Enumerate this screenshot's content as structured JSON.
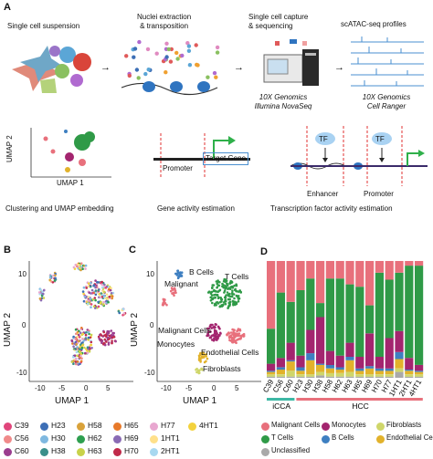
{
  "panel_letters": {
    "a": "A",
    "b": "B",
    "c": "C",
    "d": "D"
  },
  "workflow": {
    "step1": "Single cell suspension",
    "step2": "Nuclei extraction\n& transposition",
    "step3": "Single cell capture\n& sequencing",
    "step4": "scATAC-seq profiles",
    "platform1": "10X Genomics\nIllumina NovaSeq",
    "platform2": "10X Genomics\nCell Ranger"
  },
  "analyses": {
    "umap_x": "UMAP 1",
    "umap_y": "UMAP 2",
    "clustering": "Clustering and UMAP embedding",
    "promoter": "Promoter",
    "target_gene": "Target Gene",
    "gene_activity": "Gene activity estimation",
    "tf": "TF",
    "enhancer": "Enhancer",
    "tf_activity": "Transcription factor activity estimation"
  },
  "panel_b": {
    "xlabel": "UMAP 1",
    "ylabel": "UMAP 2",
    "xticks": [
      "-10",
      "-5",
      "0",
      "5"
    ],
    "yticks": [
      "10",
      "0",
      "-10"
    ]
  },
  "panel_c": {
    "xlabel": "UMAP 1",
    "ylabel": "UMAP 2",
    "xticks": [
      "-10",
      "-5",
      "0",
      "5"
    ],
    "yticks": [
      "10",
      "0",
      "-10"
    ],
    "cluster_labels": [
      "B Cells",
      "T Cells",
      "Malignant",
      "Malignant Cells",
      "Monocytes",
      "Endothelial Cells",
      "Fibroblasts"
    ]
  },
  "panel_d": {
    "group1": "iCCA",
    "group2": "HCC",
    "group1_color": "#3db8a5",
    "group2_color": "#e8707c"
  },
  "sample_legend": [
    {
      "label": "C39",
      "color": "#e0457b"
    },
    {
      "label": "H23",
      "color": "#3d6fb6"
    },
    {
      "label": "H58",
      "color": "#d9a23a"
    },
    {
      "label": "H65",
      "color": "#e87a2a"
    },
    {
      "label": "H77",
      "color": "#e8a7d0"
    },
    {
      "label": "4HT1",
      "color": "#f3d23d"
    },
    {
      "label": "C56",
      "color": "#f08a8a"
    },
    {
      "label": "H30",
      "color": "#7fb8e0"
    },
    {
      "label": "H62",
      "color": "#2e9f4f"
    },
    {
      "label": "H69",
      "color": "#8a6bb5"
    },
    {
      "label": "1HT1",
      "color": "#ffe08a"
    },
    {
      "label": "C60",
      "color": "#9b3d8f"
    },
    {
      "label": "H38",
      "color": "#3a8f8a"
    },
    {
      "label": "H63",
      "color": "#c8d24a"
    },
    {
      "label": "H70",
      "color": "#c02a4a"
    },
    {
      "label": "2HT1",
      "color": "#a8d8f0"
    }
  ],
  "celltype_legend": [
    {
      "label": "Malignant Cells",
      "color": "#e8707c"
    },
    {
      "label": "Monocytes",
      "color": "#a3256f"
    },
    {
      "label": "Fibroblasts",
      "color": "#cfd66a"
    },
    {
      "label": "T Cells",
      "color": "#2f9a47"
    },
    {
      "label": "B Cells",
      "color": "#3e7fc1"
    },
    {
      "label": "Endothelial Cells",
      "color": "#e2b22b"
    },
    {
      "label": "Unclassified",
      "color": "#a9a9a9"
    }
  ],
  "chart_data": {
    "type": "bar",
    "stacked": true,
    "categories": [
      "C39",
      "C56",
      "C60",
      "H23",
      "H30",
      "H38",
      "H58",
      "H62",
      "H63",
      "H65",
      "H69",
      "H70",
      "H77",
      "1HT1",
      "2HT1",
      "4HT1"
    ],
    "ylim": [
      0,
      1
    ],
    "series": [
      {
        "name": "Unclassified",
        "color": "#a9a9a9",
        "values": [
          0.01,
          0.01,
          0.01,
          0.01,
          0.01,
          0.02,
          0.01,
          0.01,
          0.01,
          0.01,
          0.01,
          0.01,
          0.01,
          0.05,
          0.01,
          0.01
        ]
      },
      {
        "name": "Fibroblasts",
        "color": "#cfd66a",
        "values": [
          0.02,
          0.02,
          0.05,
          0.02,
          0.02,
          0.03,
          0.03,
          0.03,
          0.04,
          0.02,
          0.02,
          0.02,
          0.02,
          0.03,
          0.02,
          0.02
        ]
      },
      {
        "name": "Endothelial Cells",
        "color": "#e2b22b",
        "values": [
          0.02,
          0.04,
          0.08,
          0.03,
          0.12,
          0.06,
          0.04,
          0.03,
          0.1,
          0.03,
          0.05,
          0.03,
          0.03,
          0.08,
          0.03,
          0.02
        ]
      },
      {
        "name": "B Cells",
        "color": "#3e7fc1",
        "values": [
          0.01,
          0.02,
          0.01,
          0.03,
          0.06,
          0.01,
          0.03,
          0.02,
          0.03,
          0.02,
          0.02,
          0.02,
          0.02,
          0.06,
          0.01,
          0.01
        ]
      },
      {
        "name": "Monocytes",
        "color": "#a3256f",
        "values": [
          0.06,
          0.08,
          0.15,
          0.1,
          0.2,
          0.4,
          0.12,
          0.1,
          0.12,
          0.1,
          0.28,
          0.1,
          0.26,
          0.18,
          0.1,
          0.05
        ]
      },
      {
        "name": "T Cells",
        "color": "#2f9a47",
        "values": [
          0.3,
          0.56,
          0.35,
          0.56,
          0.44,
          0.12,
          0.62,
          0.66,
          0.5,
          0.6,
          0.24,
          0.72,
          0.5,
          0.5,
          0.79,
          0.85
        ]
      },
      {
        "name": "Malignant Cells",
        "color": "#e8707c",
        "values": [
          0.58,
          0.27,
          0.35,
          0.25,
          0.15,
          0.36,
          0.15,
          0.15,
          0.2,
          0.22,
          0.38,
          0.1,
          0.16,
          0.1,
          0.04,
          0.04
        ]
      }
    ]
  }
}
